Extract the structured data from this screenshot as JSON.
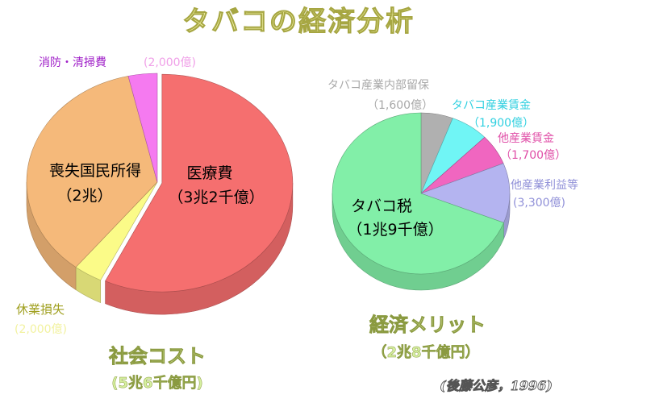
{
  "title": "タバコの経済分析",
  "source": "(後藤公彦，1996)",
  "colors": {
    "iryohi": "#f56f6f",
    "sositsu": "#f5b97a",
    "kyugyo": "#fbfb88",
    "shobo": "#f57af0",
    "tabacco_zei": "#82efa8",
    "naibu": "#b0b0b0",
    "tinkin": "#70f5f5",
    "ta_chinkin": "#f066c0",
    "ta_rieki": "#b4b4f0"
  },
  "chart_data": [
    {
      "type": "pie",
      "name": "社会コスト",
      "total_label": "社会コスト",
      "total_value": "(5兆6千億円)",
      "units": "億円",
      "slices": [
        {
          "label": "医療費",
          "value_label": "（3兆2千億）",
          "value": 32000,
          "color_key": "iryohi"
        },
        {
          "label": "休業損失",
          "value_label": "(2,000億)",
          "value": 2000,
          "color_key": "kyugyo"
        },
        {
          "label": "喪失国民所得",
          "value_label": "（2兆）",
          "value": 20000,
          "color_key": "sositsu"
        },
        {
          "label": "消防・清掃費",
          "value_label": "(2,000億)",
          "value": 2000,
          "color_key": "shobo"
        }
      ]
    },
    {
      "type": "pie",
      "name": "経済メリット",
      "total_label": "経済メリット",
      "total_value": "（2兆8千億円）",
      "units": "億円",
      "slices": [
        {
          "label": "タバコ産業内部留保",
          "value_label": "（1,600億）",
          "value": 1600,
          "color_key": "naibu"
        },
        {
          "label": "タバコ産業賃金",
          "value_label": "（1,900億）",
          "value": 1900,
          "color_key": "tinkin"
        },
        {
          "label": "他産業賃金",
          "value_label": "（1,700億）",
          "value": 1700,
          "color_key": "ta_chinkin"
        },
        {
          "label": "他産業利益等",
          "value_label": "(3,300億)",
          "value": 3300,
          "color_key": "ta_rieki"
        },
        {
          "label": "タバコ税",
          "value_label": "（1兆9千億）",
          "value": 19000,
          "color_key": "tabacco_zei"
        }
      ]
    }
  ]
}
